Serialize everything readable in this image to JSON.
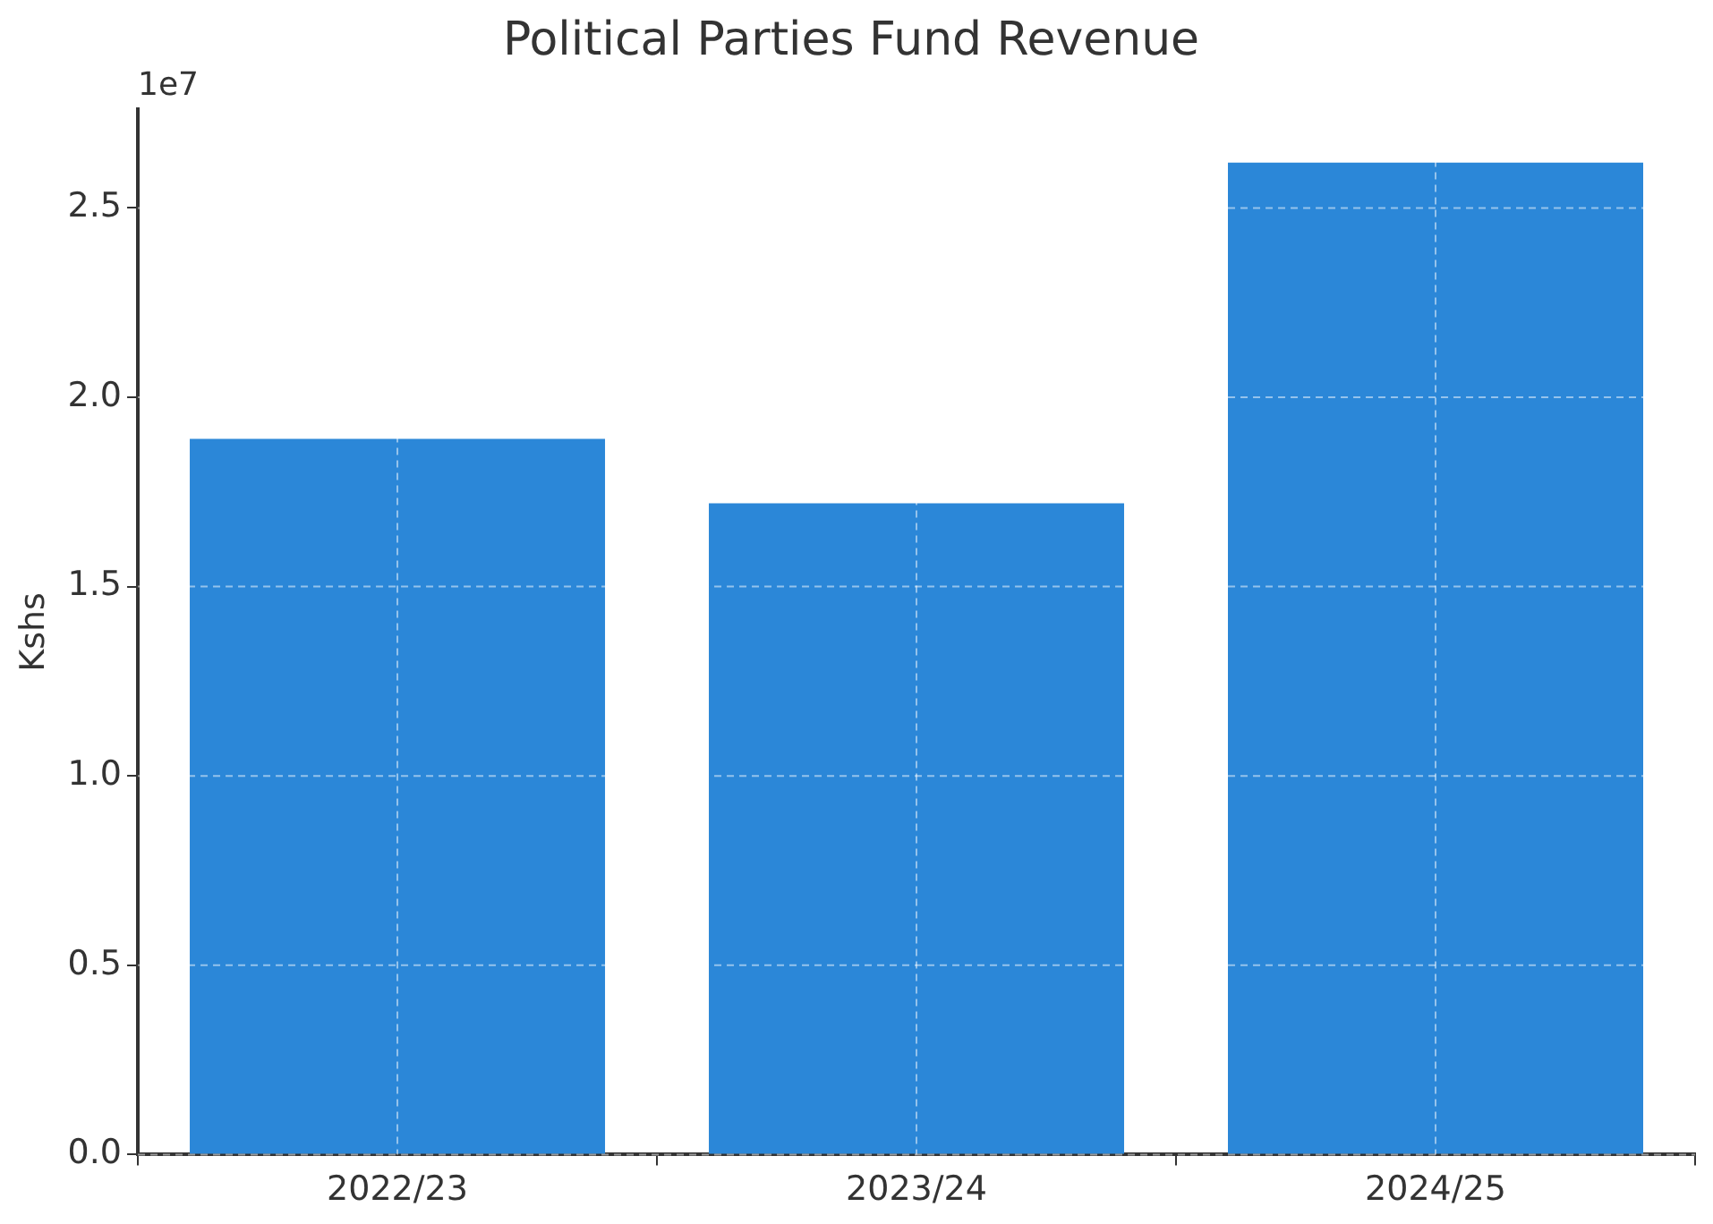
{
  "chart_data": {
    "type": "bar",
    "title": "Political Parties Fund Revenue",
    "ylabel": "Kshs",
    "categories": [
      "2022/23",
      "2023/24",
      "2024/25"
    ],
    "values": [
      1.89,
      1.72,
      2.62
    ],
    "color": "#2b87d8",
    "ylim": [
      0,
      2.76
    ],
    "yticks": [
      {
        "value": 0,
        "label": "0.0"
      },
      0.5,
      {
        "value": 1,
        "label": "1.0"
      },
      1.5,
      {
        "value": 2,
        "label": "2.0"
      },
      2.5
    ],
    "annotations": [
      "1e7"
    ],
    "grid": true,
    "legend": false
  }
}
